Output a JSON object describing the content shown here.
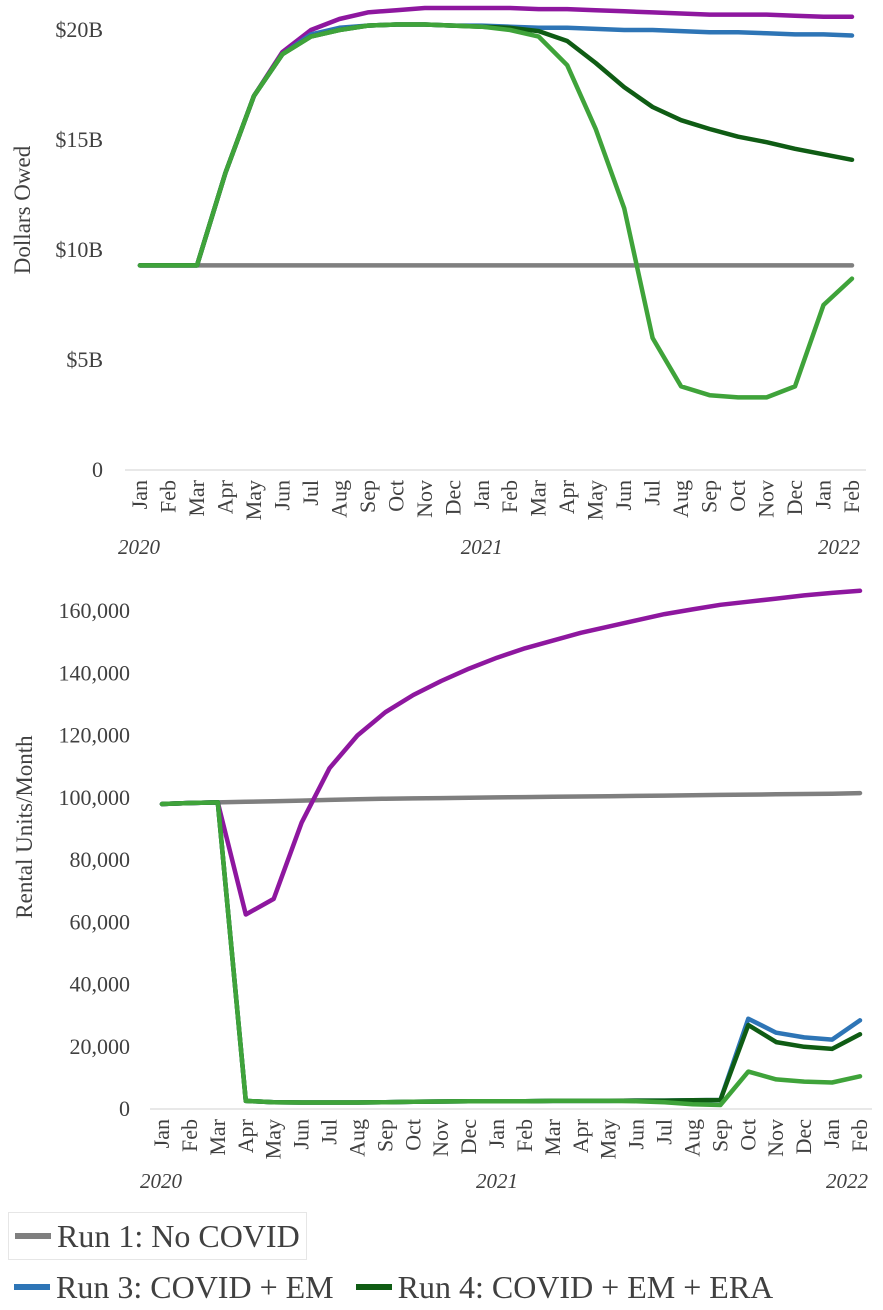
{
  "colors": {
    "run1": "#7f7f7f",
    "run2": "#8e179f",
    "run3": "#2e75b6",
    "run4": "#0f5c14",
    "run5": "#3fa33a"
  },
  "chart_data": [
    {
      "type": "line",
      "ylabel": "Dollars Owed",
      "ylim": [
        0,
        21
      ],
      "y_ticks": [
        0,
        5,
        10,
        15,
        20
      ],
      "y_tick_labels": [
        "0",
        "$5B",
        "$10B",
        "$15B",
        "$20B"
      ],
      "grid": false,
      "x": [
        "Jan",
        "Feb",
        "Mar",
        "Apr",
        "May",
        "Jun",
        "Jul",
        "Aug",
        "Sep",
        "Oct",
        "Nov",
        "Dec",
        "Jan",
        "Feb",
        "Mar",
        "Apr",
        "May",
        "Jun",
        "Jul",
        "Aug",
        "Sep",
        "Oct",
        "Nov",
        "Dec",
        "Jan",
        "Feb"
      ],
      "year_labels": [
        {
          "label": "2020",
          "at_index": 0
        },
        {
          "label": "2021",
          "at_index": 12
        },
        {
          "label": "2022",
          "at_index": 24
        }
      ],
      "series": [
        {
          "id": "run1",
          "color_key": "run1",
          "values": [
            9.3,
            9.3,
            9.3,
            9.3,
            9.3,
            9.3,
            9.3,
            9.3,
            9.3,
            9.3,
            9.3,
            9.3,
            9.3,
            9.3,
            9.3,
            9.3,
            9.3,
            9.3,
            9.3,
            9.3,
            9.3,
            9.3,
            9.3,
            9.3,
            9.3,
            9.3
          ]
        },
        {
          "id": "run2",
          "color_key": "run2",
          "values": [
            9.3,
            9.3,
            9.3,
            13.5,
            17.0,
            19.0,
            20.0,
            20.5,
            20.8,
            20.9,
            21.0,
            21.0,
            21.0,
            21.0,
            20.95,
            20.95,
            20.9,
            20.85,
            20.8,
            20.75,
            20.7,
            20.7,
            20.7,
            20.65,
            20.6,
            20.6
          ]
        },
        {
          "id": "run3",
          "color_key": "run3",
          "values": [
            9.3,
            9.3,
            9.3,
            13.5,
            17.0,
            18.9,
            19.8,
            20.1,
            20.2,
            20.25,
            20.25,
            20.2,
            20.2,
            20.15,
            20.1,
            20.1,
            20.05,
            20.0,
            20.0,
            19.95,
            19.9,
            19.9,
            19.85,
            19.8,
            19.8,
            19.75
          ]
        },
        {
          "id": "run4",
          "color_key": "run4",
          "values": [
            9.3,
            9.3,
            9.3,
            13.5,
            17.0,
            18.9,
            19.7,
            20.0,
            20.2,
            20.25,
            20.25,
            20.2,
            20.15,
            20.1,
            19.95,
            19.5,
            18.5,
            17.4,
            16.5,
            15.9,
            15.5,
            15.15,
            14.9,
            14.6,
            14.35,
            14.1
          ]
        },
        {
          "id": "run5",
          "color_key": "run5",
          "values": [
            9.3,
            9.3,
            9.3,
            13.5,
            17.0,
            18.9,
            19.7,
            20.0,
            20.2,
            20.25,
            20.25,
            20.2,
            20.15,
            20.0,
            19.7,
            18.4,
            15.5,
            11.9,
            6.0,
            3.8,
            3.4,
            3.3,
            3.3,
            3.8,
            7.5,
            8.7
          ]
        }
      ]
    },
    {
      "type": "line",
      "ylabel": "Rental Units/Month",
      "ylim": [
        0,
        160000
      ],
      "y_ticks": [
        0,
        20000,
        40000,
        60000,
        80000,
        100000,
        120000,
        140000,
        160000
      ],
      "y_tick_labels": [
        "0",
        "20,000",
        "40,000",
        "60,000",
        "80,000",
        "100,000",
        "120,000",
        "140,000",
        "160,000"
      ],
      "grid": false,
      "x": [
        "Jan",
        "Feb",
        "Mar",
        "Apr",
        "May",
        "Jun",
        "Jul",
        "Aug",
        "Sep",
        "Oct",
        "Nov",
        "Dec",
        "Jan",
        "Feb",
        "Mar",
        "Apr",
        "May",
        "Jun",
        "Jul",
        "Aug",
        "Sep",
        "Oct",
        "Nov",
        "Dec",
        "Jan",
        "Feb"
      ],
      "year_labels": [
        {
          "label": "2020",
          "at_index": 0
        },
        {
          "label": "2021",
          "at_index": 12
        },
        {
          "label": "2022",
          "at_index": 24
        }
      ],
      "series": [
        {
          "id": "run1",
          "color_key": "run1",
          "values": [
            98000,
            98300,
            98500,
            98700,
            98900,
            99100,
            99300,
            99500,
            99700,
            99800,
            99900,
            100000,
            100100,
            100200,
            100300,
            100400,
            100500,
            100600,
            100700,
            100800,
            100900,
            101000,
            101100,
            101200,
            101300,
            101500
          ]
        },
        {
          "id": "run2",
          "color_key": "run2",
          "values": [
            98000,
            98300,
            98500,
            62500,
            67500,
            92000,
            109500,
            120000,
            127500,
            133000,
            137500,
            141500,
            145000,
            148000,
            150500,
            153000,
            155000,
            157000,
            159000,
            160500,
            162000,
            163000,
            164000,
            165000,
            165800,
            166500
          ]
        },
        {
          "id": "run3",
          "color_key": "run3",
          "values": [
            98000,
            98300,
            98500,
            2600,
            2200,
            2100,
            2100,
            2100,
            2200,
            2300,
            2400,
            2500,
            2500,
            2500,
            2600,
            2600,
            2600,
            2700,
            2700,
            2800,
            2900,
            29000,
            24500,
            23000,
            22300,
            28500
          ]
        },
        {
          "id": "run4",
          "color_key": "run4",
          "values": [
            98000,
            98300,
            98500,
            2600,
            2200,
            2100,
            2100,
            2100,
            2200,
            2300,
            2400,
            2500,
            2500,
            2500,
            2600,
            2600,
            2600,
            2700,
            2700,
            2800,
            2900,
            27000,
            21500,
            20000,
            19300,
            24000
          ]
        },
        {
          "id": "run5",
          "color_key": "run5",
          "values": [
            98000,
            98300,
            98500,
            2600,
            2200,
            2100,
            2100,
            2100,
            2200,
            2300,
            2400,
            2500,
            2500,
            2500,
            2600,
            2600,
            2600,
            2500,
            2200,
            1500,
            1300,
            12000,
            9500,
            8800,
            8500,
            10500
          ]
        }
      ]
    }
  ],
  "legend": {
    "run1": "Run 1: No COVID",
    "run3": "Run 3: COVID + EM",
    "run4": "Run 4: COVID + EM + ERA"
  }
}
